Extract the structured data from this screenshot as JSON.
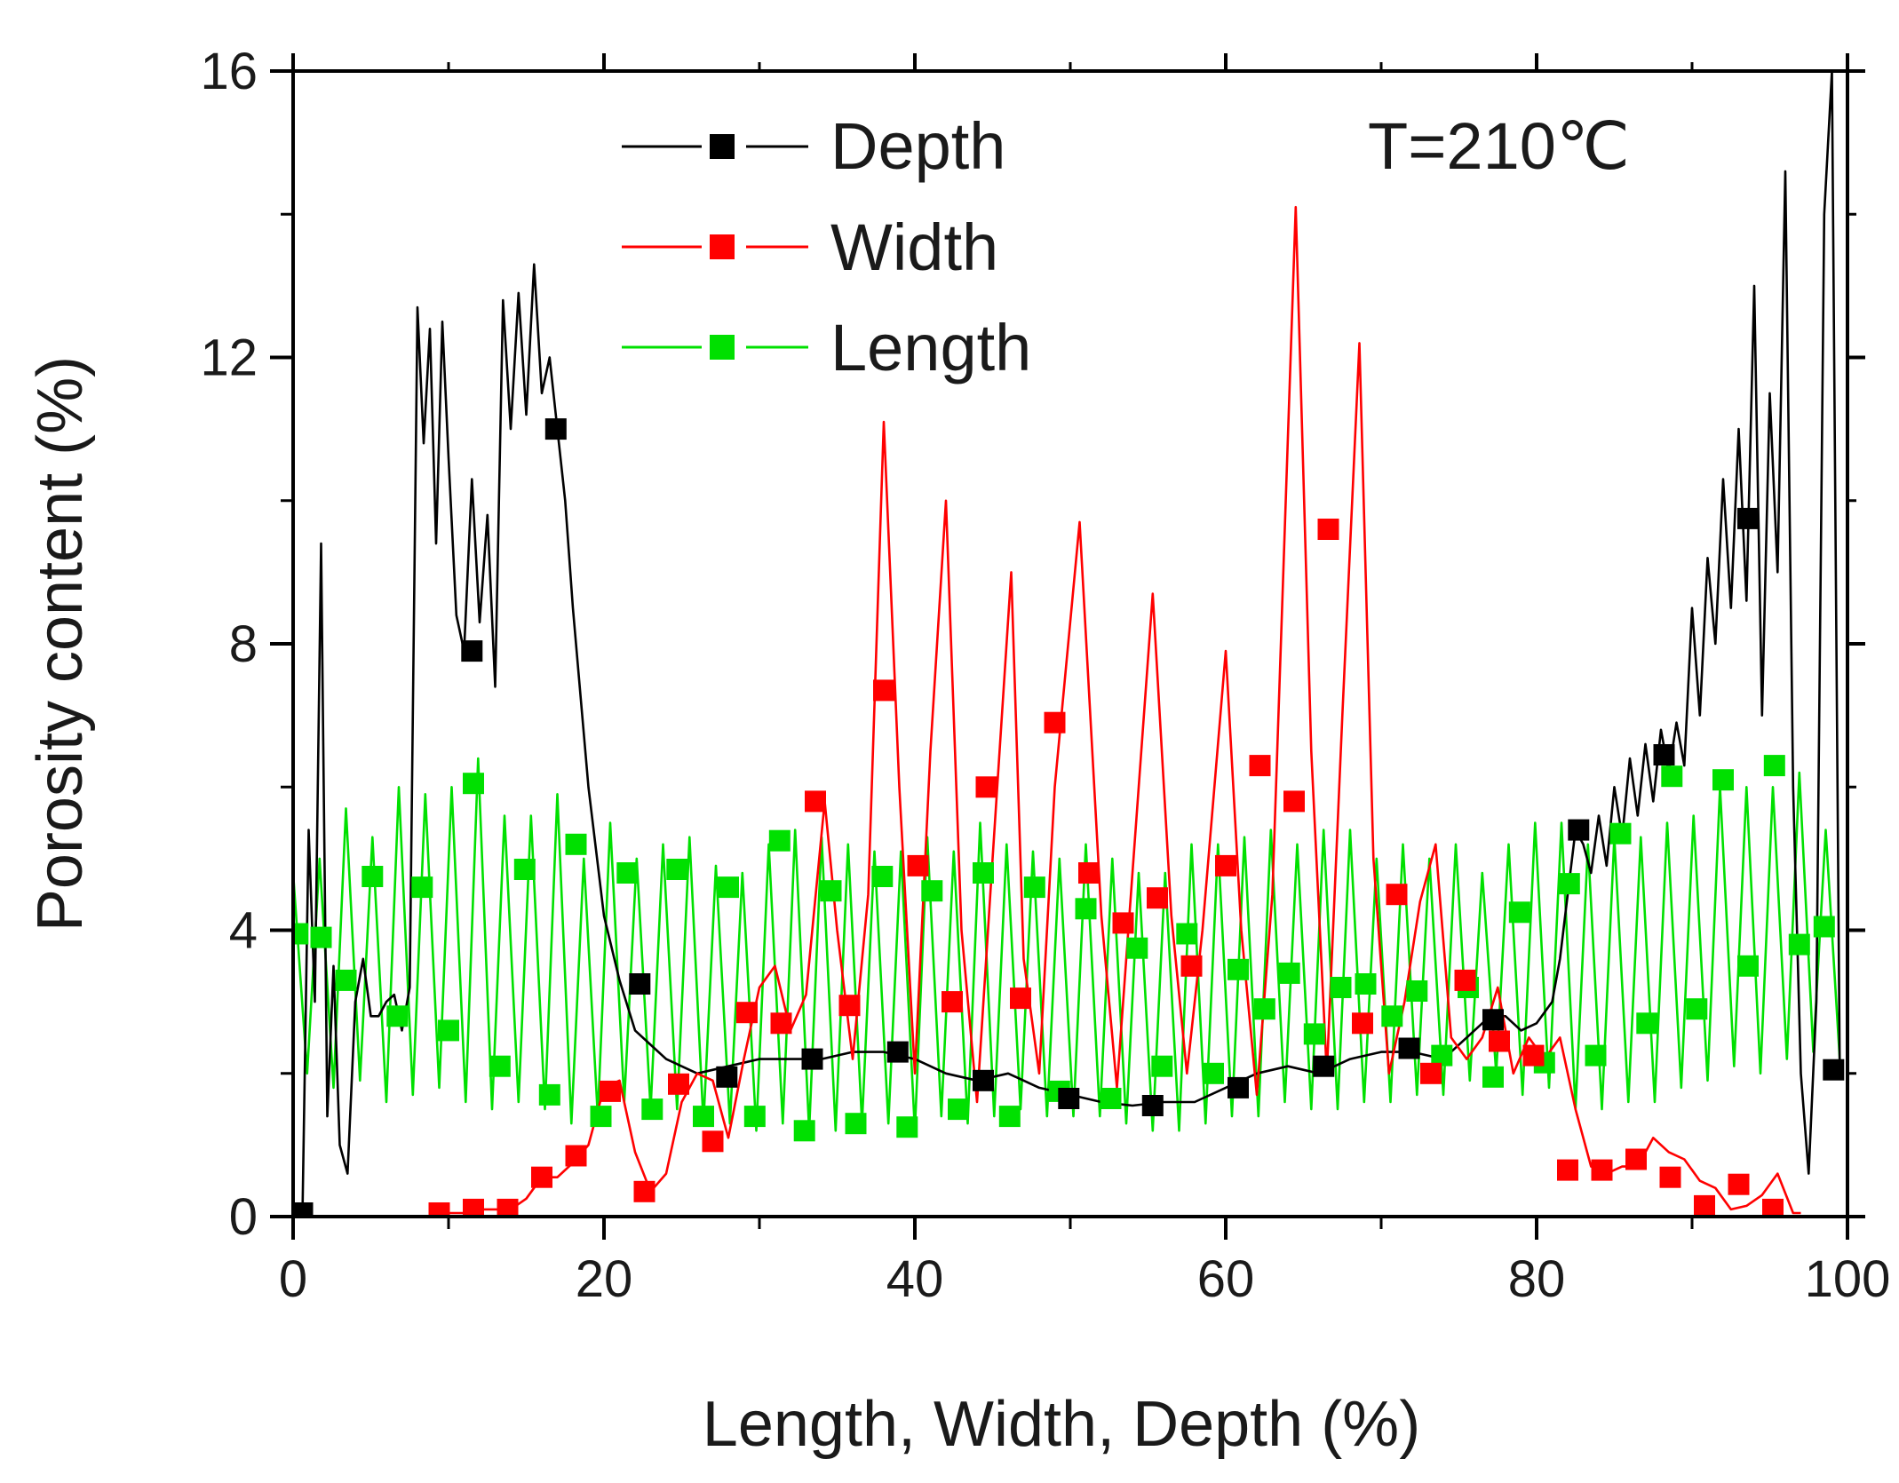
{
  "chart_data": {
    "type": "line",
    "title": "",
    "xlabel": "Length, Width, Depth  (%)",
    "ylabel": "Porosity content (%)",
    "xlim": [
      0,
      100
    ],
    "ylim": [
      0,
      16
    ],
    "x_ticks": [
      0,
      20,
      40,
      60,
      80,
      100
    ],
    "y_ticks": [
      0,
      4,
      8,
      12,
      16
    ],
    "x_tick_labels": [
      "0",
      "20",
      "40",
      "60",
      "80",
      "100"
    ],
    "y_tick_labels": [
      "0",
      "4",
      "8",
      "12",
      "16"
    ],
    "annotation": "T=210℃",
    "legend_position": "top-center",
    "series": [
      {
        "name": "Depth",
        "color": "#000000",
        "x": [
          0,
          0.6,
          1.0,
          1.4,
          1.8,
          2.2,
          2.6,
          3.0,
          3.5,
          4.0,
          4.5,
          5.0,
          5.5,
          6.0,
          6.5,
          7.0,
          7.5,
          8.0,
          8.4,
          8.8,
          9.2,
          9.6,
          10.0,
          10.5,
          11.0,
          11.5,
          12.0,
          12.5,
          13.0,
          13.5,
          14.0,
          14.5,
          15.0,
          15.5,
          16.0,
          16.5,
          17.0,
          17.5,
          18.0,
          19.0,
          20.0,
          21.0,
          22.0,
          23.0,
          24.0,
          26.0,
          28.0,
          30.0,
          32.0,
          34.0,
          36.0,
          38.0,
          40.0,
          42.0,
          44.0,
          46.0,
          48.0,
          50.0,
          52.0,
          54.0,
          56.0,
          58.0,
          60.0,
          62.0,
          64.0,
          66.0,
          68.0,
          70.0,
          72.0,
          74.0,
          76.0,
          77.0,
          78.0,
          79.0,
          80.0,
          81.0,
          81.5,
          82.0,
          82.5,
          83.0,
          83.5,
          84.0,
          84.5,
          85.0,
          85.5,
          86.0,
          86.5,
          87.0,
          87.5,
          88.0,
          88.5,
          89.0,
          89.5,
          90.0,
          90.5,
          91.0,
          91.5,
          92.0,
          92.5,
          93.0,
          93.5,
          94.0,
          94.5,
          95.0,
          95.5,
          96.0,
          96.5,
          97.0,
          97.5,
          98.0,
          98.5,
          99.0,
          99.5
        ],
        "y": [
          0,
          0,
          5.4,
          3.0,
          9.4,
          1.4,
          3.5,
          1.0,
          0.6,
          3.0,
          3.6,
          2.8,
          2.8,
          3.0,
          3.1,
          2.6,
          3.2,
          12.7,
          10.8,
          12.4,
          9.4,
          12.5,
          10.6,
          8.4,
          7.9,
          10.3,
          8.3,
          9.8,
          7.4,
          12.8,
          11.0,
          12.9,
          11.2,
          13.3,
          11.5,
          12.0,
          11.0,
          10.0,
          8.5,
          6.0,
          4.2,
          3.3,
          2.6,
          2.4,
          2.2,
          2.0,
          2.1,
          2.2,
          2.2,
          2.2,
          2.3,
          2.3,
          2.2,
          2.0,
          1.9,
          2.0,
          1.8,
          1.7,
          1.6,
          1.55,
          1.6,
          1.6,
          1.8,
          2.0,
          2.1,
          2.0,
          2.2,
          2.3,
          2.3,
          2.2,
          2.6,
          2.8,
          2.8,
          2.6,
          2.7,
          3.0,
          3.6,
          4.5,
          5.4,
          5.2,
          4.8,
          5.6,
          4.9,
          6.0,
          5.3,
          6.4,
          5.6,
          6.6,
          5.8,
          6.8,
          6.2,
          6.9,
          6.3,
          8.5,
          7.0,
          9.2,
          8.0,
          10.3,
          8.5,
          11.0,
          8.6,
          13.0,
          7.0,
          11.5,
          9.0,
          14.6,
          6.0,
          2.0,
          0.6,
          3.0,
          14.0,
          16.0,
          2.0
        ],
        "marker_x": [
          0.6,
          11.5,
          16.9,
          22.3,
          27.9,
          33.4,
          38.9,
          44.4,
          49.9,
          55.3,
          60.8,
          66.3,
          71.8,
          77.2,
          82.7,
          88.2,
          93.6,
          99.1
        ],
        "marker_y": [
          0.05,
          7.9,
          11.0,
          3.25,
          1.95,
          2.2,
          2.3,
          1.9,
          1.65,
          1.55,
          1.8,
          2.1,
          2.35,
          2.75,
          5.4,
          6.45,
          9.75,
          2.05
        ]
      },
      {
        "name": "Width",
        "color": "#ff0000",
        "x": [
          9.0,
          10.0,
          11.0,
          12.0,
          13.0,
          14.0,
          15.0,
          16.0,
          17.0,
          18.0,
          19.0,
          20.0,
          21.0,
          22.0,
          23.0,
          24.0,
          25.0,
          26.0,
          27.0,
          28.0,
          29.0,
          30.0,
          31.0,
          32.0,
          33.0,
          34.2,
          35.0,
          36.0,
          37.0,
          38.0,
          39.0,
          40.0,
          41.0,
          42.0,
          43.0,
          44.0,
          45.0,
          46.2,
          47.0,
          48.0,
          49.0,
          50.6,
          52.0,
          53.0,
          54.0,
          55.3,
          56.5,
          57.5,
          58.5,
          60.0,
          61.0,
          62.0,
          63.0,
          64.5,
          65.5,
          66.5,
          67.5,
          68.6,
          69.5,
          70.5,
          71.5,
          72.5,
          73.5,
          74.5,
          75.5,
          76.5,
          77.5,
          78.5,
          79.5,
          80.5,
          81.5,
          82.5,
          83.5,
          84.5,
          85.5,
          86.5,
          87.5,
          88.5,
          89.5,
          90.5,
          91.5,
          92.5,
          93.5,
          94.5,
          95.5,
          96.5,
          97.0
        ],
        "y": [
          0.05,
          0.05,
          0.05,
          0.1,
          0.1,
          0.1,
          0.25,
          0.55,
          0.55,
          0.75,
          1.0,
          1.8,
          1.9,
          0.9,
          0.35,
          0.6,
          1.6,
          2.0,
          1.9,
          1.1,
          2.2,
          3.2,
          3.5,
          2.6,
          3.1,
          5.8,
          4.0,
          2.2,
          4.5,
          11.1,
          6.0,
          2.0,
          6.5,
          10.0,
          4.0,
          1.6,
          5.0,
          9.0,
          3.6,
          2.0,
          6.0,
          9.7,
          4.2,
          1.8,
          4.8,
          8.7,
          4.2,
          2.0,
          4.0,
          7.9,
          4.0,
          1.7,
          4.5,
          14.1,
          6.5,
          2.0,
          7.0,
          12.2,
          5.0,
          2.0,
          3.0,
          4.4,
          5.2,
          2.5,
          2.2,
          2.5,
          3.2,
          2.0,
          2.5,
          2.2,
          2.5,
          1.5,
          0.7,
          0.6,
          0.7,
          0.7,
          1.1,
          0.9,
          0.8,
          0.5,
          0.4,
          0.1,
          0.15,
          0.3,
          0.6,
          0.05,
          0.05
        ],
        "marker_x": [
          9.4,
          11.6,
          13.8,
          16.0,
          18.2,
          20.4,
          22.6,
          24.8,
          27.0,
          29.2,
          31.4,
          33.6,
          35.8,
          38.0,
          40.2,
          42.4,
          44.6,
          46.8,
          49.0,
          51.2,
          53.4,
          55.6,
          57.8,
          60.0,
          62.2,
          64.4,
          66.6,
          68.8,
          71.0,
          73.2,
          75.4,
          77.6,
          79.8,
          82.0,
          84.2,
          86.4,
          88.6,
          90.8,
          93.0,
          95.2
        ],
        "marker_y": [
          0.05,
          0.1,
          0.1,
          0.55,
          0.85,
          1.75,
          0.35,
          1.85,
          1.05,
          2.85,
          2.7,
          5.8,
          2.95,
          7.35,
          4.9,
          3.0,
          6.0,
          3.05,
          6.9,
          4.8,
          4.1,
          4.45,
          3.5,
          4.9,
          6.3,
          5.8,
          9.6,
          2.7,
          4.5,
          2.0,
          3.3,
          2.45,
          2.25,
          0.65,
          0.65,
          0.8,
          0.55,
          0.15,
          0.45,
          0.1
        ]
      },
      {
        "name": "Length",
        "color": "#00e000",
        "x": [
          0,
          0.9,
          1.7,
          2.6,
          3.4,
          4.3,
          5.1,
          6.0,
          6.8,
          7.7,
          8.5,
          9.4,
          10.2,
          11.1,
          11.9,
          12.8,
          13.6,
          14.5,
          15.3,
          16.2,
          17.0,
          17.9,
          18.7,
          19.6,
          20.4,
          21.3,
          22.1,
          23.0,
          23.8,
          24.7,
          25.5,
          26.4,
          27.2,
          28.1,
          28.9,
          29.8,
          30.6,
          31.5,
          32.3,
          33.2,
          34.0,
          34.9,
          35.7,
          36.6,
          37.4,
          38.3,
          39.1,
          40.0,
          40.8,
          41.7,
          42.5,
          43.4,
          44.2,
          45.1,
          45.9,
          46.8,
          47.6,
          48.5,
          49.3,
          50.2,
          51.0,
          51.9,
          52.7,
          53.6,
          54.4,
          55.3,
          56.1,
          57.0,
          57.8,
          58.7,
          59.5,
          60.4,
          61.2,
          62.1,
          62.9,
          63.8,
          64.6,
          65.5,
          66.3,
          67.2,
          68.0,
          68.9,
          69.7,
          70.6,
          71.4,
          72.3,
          73.1,
          74.0,
          74.8,
          75.7,
          76.5,
          77.4,
          78.2,
          79.1,
          79.9,
          80.8,
          81.6,
          82.5,
          83.3,
          84.2,
          85.0,
          85.9,
          86.7,
          87.6,
          88.4,
          89.3,
          90.1,
          91.0,
          91.8,
          92.7,
          93.5,
          94.4,
          95.2,
          96.1,
          96.9,
          97.8,
          98.6,
          99.5
        ],
        "y": [
          4.8,
          2.0,
          5.0,
          1.8,
          5.7,
          1.9,
          5.3,
          1.6,
          6.0,
          1.7,
          5.9,
          1.8,
          6.0,
          1.6,
          6.4,
          1.5,
          5.6,
          1.6,
          5.6,
          1.5,
          5.9,
          1.3,
          5.0,
          1.4,
          5.5,
          1.6,
          5.0,
          1.5,
          5.2,
          1.5,
          5.3,
          1.3,
          4.9,
          1.3,
          4.8,
          1.2,
          5.2,
          1.3,
          5.4,
          1.2,
          5.3,
          1.2,
          5.2,
          1.3,
          5.1,
          1.3,
          5.1,
          1.2,
          5.3,
          1.4,
          5.1,
          1.3,
          5.5,
          1.4,
          5.2,
          1.5,
          5.1,
          1.4,
          5.0,
          1.4,
          5.2,
          1.4,
          5.0,
          1.3,
          4.8,
          1.2,
          4.8,
          1.2,
          5.2,
          1.3,
          5.2,
          1.4,
          5.3,
          1.4,
          5.4,
          1.6,
          5.2,
          1.5,
          5.4,
          1.5,
          5.4,
          1.6,
          5.0,
          1.6,
          5.2,
          1.7,
          5.0,
          1.7,
          5.2,
          1.9,
          4.8,
          2.0,
          5.2,
          1.7,
          5.5,
          1.8,
          5.5,
          1.5,
          5.2,
          1.5,
          5.3,
          1.6,
          5.3,
          1.6,
          5.5,
          1.8,
          5.6,
          1.9,
          6.0,
          2.1,
          6.0,
          2.0,
          6.0,
          2.2,
          6.2,
          2.3,
          5.4,
          2.2
        ],
        "marker_x": [
          0.3,
          1.8,
          3.4,
          5.1,
          6.7,
          8.3,
          10.0,
          11.6,
          13.3,
          14.9,
          16.5,
          18.2,
          19.8,
          21.5,
          23.1,
          24.7,
          26.4,
          28.0,
          29.7,
          31.3,
          32.9,
          34.6,
          36.2,
          37.9,
          39.5,
          41.1,
          42.8,
          44.4,
          46.1,
          47.7,
          49.3,
          51.0,
          52.6,
          54.3,
          55.9,
          57.5,
          59.2,
          60.8,
          62.5,
          64.1,
          65.7,
          67.4,
          69.0,
          70.7,
          72.3,
          73.9,
          75.6,
          77.2,
          78.9,
          80.5,
          82.1,
          83.8,
          85.4,
          87.1,
          88.7,
          90.3,
          92.0,
          93.6,
          95.3,
          96.9,
          98.5
        ],
        "marker_y": [
          3.95,
          3.9,
          3.3,
          4.75,
          2.8,
          4.6,
          2.6,
          6.05,
          2.1,
          4.85,
          1.7,
          5.2,
          1.4,
          4.8,
          1.5,
          4.85,
          1.4,
          4.6,
          1.4,
          5.25,
          1.2,
          4.55,
          1.3,
          4.75,
          1.25,
          4.55,
          1.5,
          4.8,
          1.4,
          4.6,
          1.75,
          4.3,
          1.65,
          3.75,
          2.1,
          3.95,
          2.0,
          3.45,
          2.9,
          3.4,
          2.55,
          3.2,
          3.25,
          2.8,
          3.15,
          2.25,
          3.2,
          1.95,
          4.25,
          2.15,
          4.65,
          2.25,
          5.35,
          2.7,
          6.15,
          2.9,
          6.1,
          3.5,
          6.3,
          3.8,
          4.05
        ]
      }
    ]
  }
}
